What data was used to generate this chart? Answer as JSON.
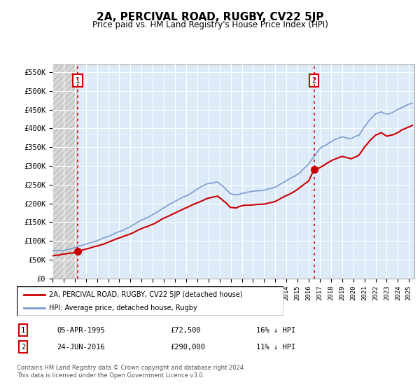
{
  "title": "2A, PERCIVAL ROAD, RUGBY, CV22 5JP",
  "subtitle": "Price paid vs. HM Land Registry's House Price Index (HPI)",
  "ytick_values": [
    0,
    50000,
    100000,
    150000,
    200000,
    250000,
    300000,
    350000,
    400000,
    450000,
    500000,
    550000
  ],
  "ylabel_ticks": [
    "£0",
    "£50K",
    "£100K",
    "£150K",
    "£200K",
    "£250K",
    "£300K",
    "£350K",
    "£400K",
    "£450K",
    "£500K",
    "£550K"
  ],
  "ylim": [
    0,
    570000
  ],
  "xlim_start": 1993.0,
  "xlim_end": 2025.5,
  "hpi_color": "#7799cc",
  "price_color": "#cc0000",
  "vline_color": "#cc0000",
  "marker1_date": 1995.27,
  "marker1_price": 72500,
  "marker2_date": 2016.48,
  "marker2_price": 290000,
  "legend_line1": "2A, PERCIVAL ROAD, RUGBY, CV22 5JP (detached house)",
  "legend_line2": "HPI: Average price, detached house, Rugby",
  "table_row1_num": "1",
  "table_row1_date": "05-APR-1995",
  "table_row1_price": "£72,500",
  "table_row1_hpi": "16% ↓ HPI",
  "table_row2_num": "2",
  "table_row2_date": "24-JUN-2016",
  "table_row2_price": "£290,000",
  "table_row2_hpi": "11% ↓ HPI",
  "footnote_line1": "Contains HM Land Registry data © Crown copyright and database right 2024.",
  "footnote_line2": "This data is licensed under the Open Government Licence v3.0.",
  "xtick_years": [
    1993,
    1994,
    1995,
    1996,
    1997,
    1998,
    1999,
    2000,
    2001,
    2002,
    2003,
    2004,
    2005,
    2006,
    2007,
    2008,
    2009,
    2010,
    2011,
    2012,
    2013,
    2014,
    2015,
    2016,
    2017,
    2018,
    2019,
    2020,
    2021,
    2022,
    2023,
    2024,
    2025
  ],
  "hpi_x": [
    1993.0,
    1994.0,
    1995.0,
    1995.27,
    1996.0,
    1997.0,
    1998.0,
    1999.0,
    2000.0,
    2001.0,
    2002.0,
    2003.0,
    2004.0,
    2005.0,
    2006.0,
    2007.0,
    2007.8,
    2008.5,
    2009.0,
    2009.5,
    2010.0,
    2011.0,
    2012.0,
    2013.0,
    2014.0,
    2015.0,
    2016.0,
    2016.48,
    2017.0,
    2018.0,
    2019.0,
    2019.8,
    2020.5,
    2021.0,
    2021.5,
    2022.0,
    2022.5,
    2023.0,
    2023.5,
    2024.0,
    2024.5,
    2025.3
  ],
  "hpi_y": [
    72000,
    76000,
    82000,
    86000,
    92000,
    100000,
    112000,
    125000,
    138000,
    155000,
    170000,
    188000,
    205000,
    220000,
    238000,
    252000,
    258000,
    240000,
    225000,
    222000,
    228000,
    232000,
    235000,
    242000,
    260000,
    278000,
    305000,
    325000,
    345000,
    365000,
    378000,
    372000,
    380000,
    405000,
    425000,
    440000,
    445000,
    438000,
    442000,
    450000,
    458000,
    468000
  ],
  "prop_x": [
    1993.0,
    1994.0,
    1995.0,
    1995.27,
    1996.0,
    1997.0,
    1998.0,
    1999.0,
    2000.0,
    2001.0,
    2002.0,
    2003.0,
    2004.0,
    2005.0,
    2006.0,
    2007.0,
    2007.8,
    2008.5,
    2009.0,
    2009.5,
    2010.0,
    2011.0,
    2012.0,
    2013.0,
    2014.0,
    2015.0,
    2016.0,
    2016.48,
    2017.0,
    2018.0,
    2019.0,
    2019.8,
    2020.5,
    2021.0,
    2021.5,
    2022.0,
    2022.5,
    2023.0,
    2023.5,
    2024.0,
    2024.5,
    2025.3
  ],
  "prop_y": [
    60000,
    65000,
    70000,
    72500,
    78000,
    86000,
    96000,
    108000,
    118000,
    132000,
    145000,
    160000,
    175000,
    188000,
    202000,
    214000,
    220000,
    203000,
    190000,
    188000,
    193000,
    196000,
    198000,
    205000,
    220000,
    237000,
    260000,
    290000,
    295000,
    312000,
    325000,
    318000,
    328000,
    350000,
    368000,
    382000,
    388000,
    378000,
    383000,
    390000,
    398000,
    408000
  ]
}
